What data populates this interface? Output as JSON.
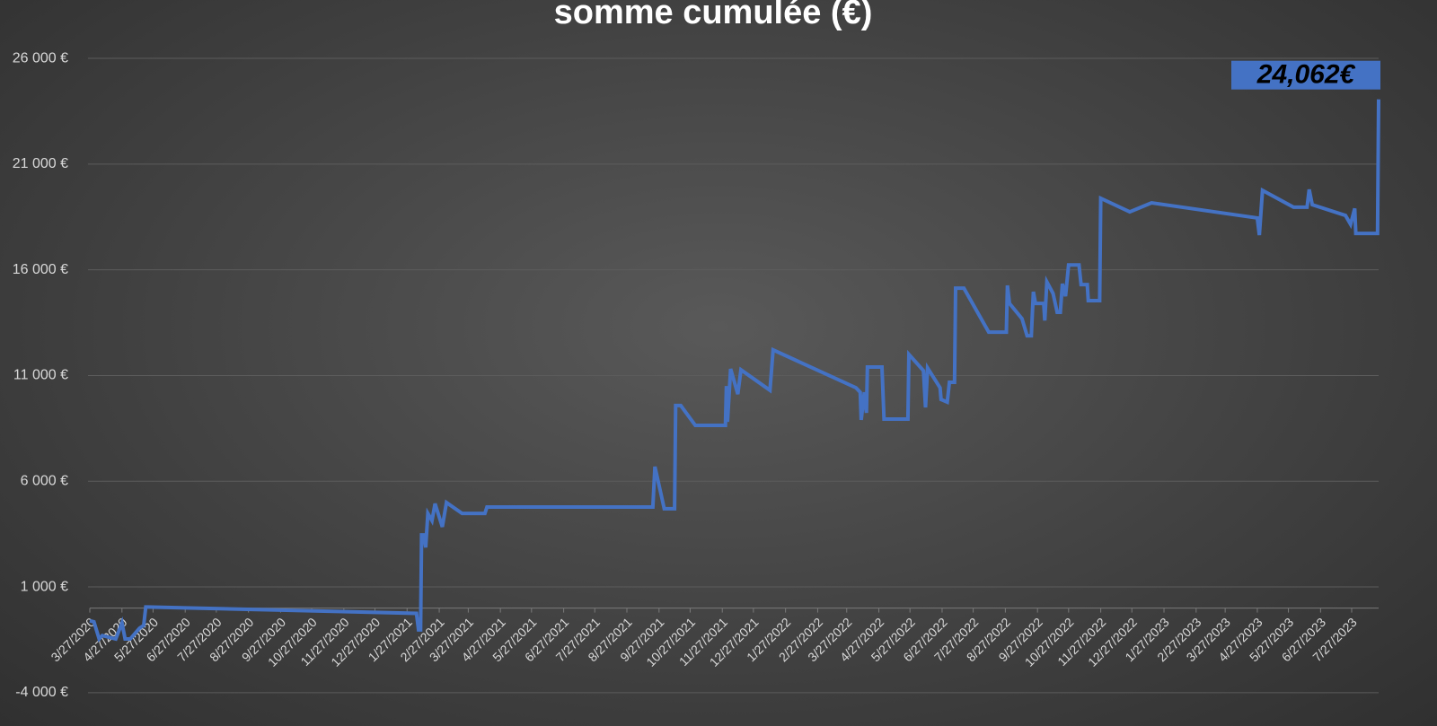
{
  "chart_data": {
    "type": "line",
    "title": "somme cumulée (€)",
    "color": "#4472c4",
    "grid": true,
    "x": [
      "2020-03-27",
      "2020-03-31",
      "2020-04-05",
      "2020-04-08",
      "2020-04-21",
      "2020-04-27",
      "2020-04-30",
      "2020-05-05",
      "2020-05-14",
      "2020-05-18",
      "2020-05-20",
      "2020-05-22",
      "2021-02-05",
      "2021-02-07",
      "2021-02-09",
      "2021-02-10",
      "2021-02-12",
      "2021-02-14",
      "2021-02-16",
      "2021-02-20",
      "2021-02-23",
      "2021-03-02",
      "2021-03-06",
      "2021-03-21",
      "2021-04-12",
      "2021-04-14",
      "2021-09-21",
      "2021-09-23",
      "2021-10-02",
      "2021-10-12",
      "2021-10-13",
      "2021-10-18",
      "2021-11-01",
      "2021-11-30",
      "2021-12-01",
      "2021-12-02",
      "2021-12-05",
      "2021-12-12",
      "2021-12-15",
      "2022-01-12",
      "2022-01-15",
      "2022-04-05",
      "2022-04-09",
      "2022-04-10",
      "2022-04-13",
      "2022-04-15",
      "2022-04-16",
      "2022-04-30",
      "2022-05-02",
      "2022-05-25",
      "2022-05-26",
      "2022-06-09",
      "2022-06-11",
      "2022-06-13",
      "2022-06-25",
      "2022-06-26",
      "2022-07-02",
      "2022-07-04",
      "2022-07-09",
      "2022-07-10",
      "2022-07-18",
      "2022-08-11",
      "2022-08-28",
      "2022-08-29",
      "2022-08-31",
      "2022-09-12",
      "2022-09-17",
      "2022-09-21",
      "2022-09-23",
      "2022-09-25",
      "2022-10-03",
      "2022-10-04",
      "2022-10-06",
      "2022-10-12",
      "2022-10-16",
      "2022-10-19",
      "2022-10-21",
      "2022-10-24",
      "2022-10-27",
      "2022-11-06",
      "2022-11-08",
      "2022-11-14",
      "2022-11-15",
      "2022-11-26",
      "2022-11-27",
      "2022-12-25",
      "2023-01-15",
      "2023-04-27",
      "2023-04-29",
      "2023-05-02",
      "2023-06-01",
      "2023-06-14",
      "2023-06-16",
      "2023-06-19",
      "2023-07-21",
      "2023-07-26",
      "2023-07-30",
      "2023-07-31",
      "2023-08-21",
      "2023-08-22"
    ],
    "values": [
      -600,
      -650,
      -1460,
      -1300,
      -1460,
      -700,
      -1460,
      -1460,
      -950,
      -820,
      50,
      50,
      -250,
      -1030,
      -1030,
      3460,
      3460,
      2870,
      4480,
      4140,
      4940,
      3840,
      4990,
      4480,
      4480,
      4780,
      4780,
      6690,
      4700,
      4700,
      9580,
      9580,
      8640,
      8640,
      10500,
      8810,
      11310,
      10120,
      11270,
      10300,
      12210,
      10420,
      10210,
      8900,
      10210,
      9230,
      11400,
      11400,
      8940,
      8940,
      12000,
      11230,
      9490,
      11360,
      10420,
      9870,
      9740,
      10680,
      10680,
      15130,
      15130,
      13050,
      13050,
      15260,
      14410,
      13690,
      12880,
      12880,
      14960,
      14410,
      14410,
      13600,
      15430,
      14880,
      13990,
      13990,
      15340,
      14750,
      16230,
      16230,
      15300,
      15300,
      14540,
      14540,
      19380,
      18740,
      19170,
      18450,
      17640,
      19760,
      18960,
      18960,
      19800,
      19080,
      18570,
      18150,
      18900,
      17720,
      17720,
      24062
    ],
    "value_labels": [
      null,
      null,
      null,
      null,
      null,
      null,
      null,
      null,
      null,
      null,
      null,
      null,
      null,
      null,
      null,
      null,
      null,
      null,
      null,
      null,
      null,
      null,
      null,
      null,
      null,
      null,
      null,
      null,
      null,
      null,
      null,
      null,
      null,
      null,
      null,
      null,
      null,
      null,
      null,
      null,
      null,
      null,
      null,
      null,
      null,
      null,
      null,
      null,
      null,
      null,
      null,
      null,
      null,
      null,
      null,
      null,
      null,
      null,
      null,
      null,
      null,
      null,
      null,
      null,
      null,
      null,
      null,
      null,
      null,
      null,
      null,
      null,
      null,
      null,
      null,
      null,
      null,
      null,
      null,
      null,
      null,
      null,
      null,
      null,
      null,
      null,
      null,
      null,
      null,
      null,
      null,
      null,
      null,
      null,
      null,
      null,
      null,
      null,
      null,
      "24,062€"
    ],
    "xlim": [
      "2020-03-27",
      "2023-08-22"
    ],
    "xticks": [
      {
        "value": "2020-03-27",
        "label": "3/27/2020"
      },
      {
        "value": "2020-04-27",
        "label": "4/27/2020"
      },
      {
        "value": "2020-05-27",
        "label": "5/27/2020"
      },
      {
        "value": "2020-06-27",
        "label": "6/27/2020"
      },
      {
        "value": "2020-07-27",
        "label": "7/27/2020"
      },
      {
        "value": "2020-08-27",
        "label": "8/27/2020"
      },
      {
        "value": "2020-09-27",
        "label": "9/27/2020"
      },
      {
        "value": "2020-10-27",
        "label": "10/27/2020"
      },
      {
        "value": "2020-11-27",
        "label": "11/27/2020"
      },
      {
        "value": "2020-12-27",
        "label": "12/27/2020"
      },
      {
        "value": "2021-01-27",
        "label": "1/27/2021"
      },
      {
        "value": "2021-02-27",
        "label": "2/27/2021"
      },
      {
        "value": "2021-03-27",
        "label": "3/27/2021"
      },
      {
        "value": "2021-04-27",
        "label": "4/27/2021"
      },
      {
        "value": "2021-05-27",
        "label": "5/27/2021"
      },
      {
        "value": "2021-06-27",
        "label": "6/27/2021"
      },
      {
        "value": "2021-07-27",
        "label": "7/27/2021"
      },
      {
        "value": "2021-08-27",
        "label": "8/27/2021"
      },
      {
        "value": "2021-09-27",
        "label": "9/27/2021"
      },
      {
        "value": "2021-10-27",
        "label": "10/27/2021"
      },
      {
        "value": "2021-11-27",
        "label": "11/27/2021"
      },
      {
        "value": "2021-12-27",
        "label": "12/27/2021"
      },
      {
        "value": "2022-01-27",
        "label": "1/27/2022"
      },
      {
        "value": "2022-02-27",
        "label": "2/27/2022"
      },
      {
        "value": "2022-03-27",
        "label": "3/27/2022"
      },
      {
        "value": "2022-04-27",
        "label": "4/27/2022"
      },
      {
        "value": "2022-05-27",
        "label": "5/27/2022"
      },
      {
        "value": "2022-06-27",
        "label": "6/27/2022"
      },
      {
        "value": "2022-07-27",
        "label": "7/27/2022"
      },
      {
        "value": "2022-08-27",
        "label": "8/27/2022"
      },
      {
        "value": "2022-09-27",
        "label": "9/27/2022"
      },
      {
        "value": "2022-10-27",
        "label": "10/27/2022"
      },
      {
        "value": "2022-11-27",
        "label": "11/27/2022"
      },
      {
        "value": "2022-12-27",
        "label": "12/27/2022"
      },
      {
        "value": "2023-01-27",
        "label": "1/27/2023"
      },
      {
        "value": "2023-02-27",
        "label": "2/27/2023"
      },
      {
        "value": "2023-03-27",
        "label": "3/27/2023"
      },
      {
        "value": "2023-04-27",
        "label": "4/27/2023"
      },
      {
        "value": "2023-05-27",
        "label": "5/27/2023"
      },
      {
        "value": "2023-06-27",
        "label": "6/27/2023"
      },
      {
        "value": "2023-07-27",
        "label": "7/27/2023"
      }
    ],
    "ylim": [
      -4000,
      26000
    ],
    "yticks": [
      {
        "value": -4000,
        "label": "-4 000 €"
      },
      {
        "value": 1000,
        "label": "1 000 €"
      },
      {
        "value": 6000,
        "label": "6 000 €"
      },
      {
        "value": 11000,
        "label": "11 000 €"
      },
      {
        "value": 16000,
        "label": "16 000 €"
      },
      {
        "value": 21000,
        "label": "21 000 €"
      },
      {
        "value": 26000,
        "label": "26 000 €"
      }
    ]
  }
}
